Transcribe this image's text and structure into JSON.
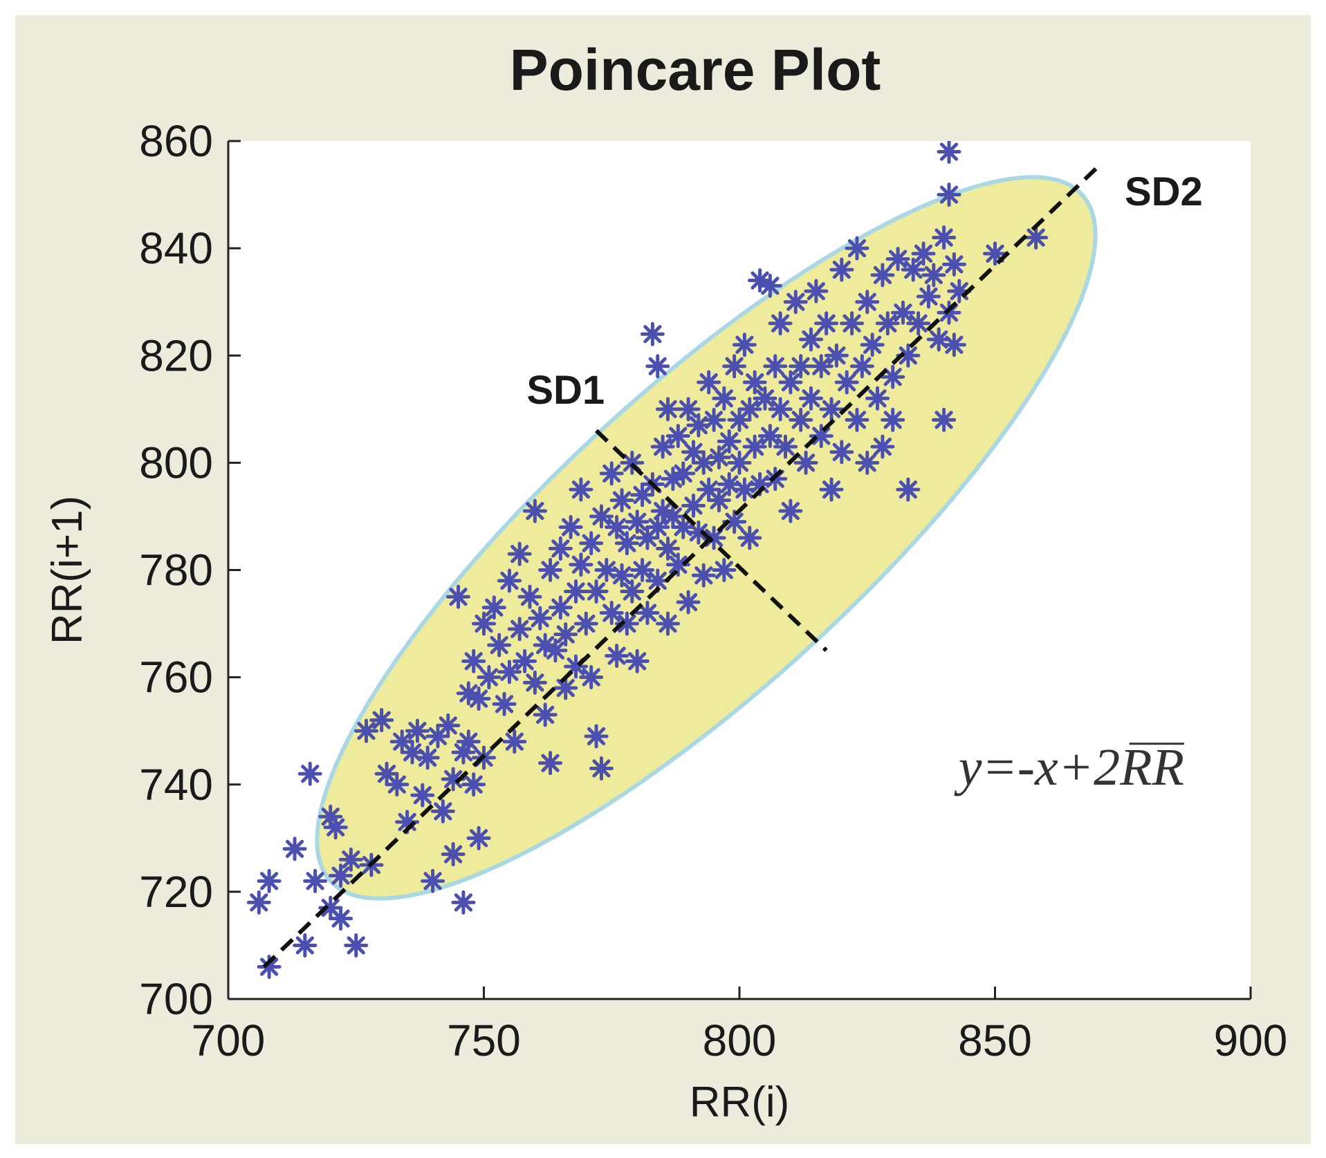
{
  "chart_data": {
    "type": "scatter",
    "title": "Poincare Plot",
    "xlabel": "RR(i)",
    "ylabel": "RR(i+1)",
    "xlim": [
      700,
      900
    ],
    "ylim": [
      700,
      860
    ],
    "xticks": [
      700,
      750,
      800,
      850,
      900
    ],
    "yticks": [
      700,
      720,
      740,
      760,
      780,
      800,
      820,
      840,
      860
    ],
    "grid": false,
    "marker": "asterisk",
    "colors": {
      "page_background": "#ecebdc",
      "plot_background": "#ffffff",
      "points": "#4a4fb0",
      "ellipse_fill": "#eeec9c",
      "ellipse_stroke": "#a9d8e4",
      "lines": "#111111"
    },
    "annotations": [
      {
        "text": "SD1",
        "x": 766,
        "y": 811
      },
      {
        "text": "SD2",
        "x": 883,
        "y": 848
      },
      {
        "text": "y=-x+2RR",
        "x": 887,
        "y": 740,
        "overline": "RR"
      }
    ],
    "ellipse": {
      "center": [
        793,
        785
      ],
      "sd2_endpoints": [
        [
          720,
          722
        ],
        [
          867,
          850
        ]
      ],
      "semi_minor": 28
    },
    "lines": [
      {
        "name": "SD2",
        "style": "dashed",
        "from": [
          707,
          706
        ],
        "to": [
          871,
          856
        ]
      },
      {
        "name": "SD1",
        "style": "dashed",
        "from": [
          772,
          806
        ],
        "to": [
          817,
          765
        ]
      }
    ],
    "points": [
      [
        706,
        718
      ],
      [
        708,
        722
      ],
      [
        708,
        706
      ],
      [
        713,
        728
      ],
      [
        715,
        710
      ],
      [
        716,
        742
      ],
      [
        717,
        722
      ],
      [
        720,
        734
      ],
      [
        720,
        717
      ],
      [
        721,
        732
      ],
      [
        722,
        715
      ],
      [
        722,
        723
      ],
      [
        725,
        710
      ],
      [
        724,
        726
      ],
      [
        727,
        750
      ],
      [
        728,
        725
      ],
      [
        730,
        752
      ],
      [
        731,
        742
      ],
      [
        733,
        740
      ],
      [
        734,
        748
      ],
      [
        735,
        733
      ],
      [
        736,
        746
      ],
      [
        737,
        750
      ],
      [
        738,
        738
      ],
      [
        739,
        745
      ],
      [
        740,
        722
      ],
      [
        741,
        749
      ],
      [
        742,
        735
      ],
      [
        743,
        751
      ],
      [
        744,
        727
      ],
      [
        744,
        741
      ],
      [
        745,
        775
      ],
      [
        746,
        718
      ],
      [
        746,
        746
      ],
      [
        747,
        757
      ],
      [
        747,
        748
      ],
      [
        748,
        763
      ],
      [
        748,
        740
      ],
      [
        749,
        730
      ],
      [
        749,
        756
      ],
      [
        750,
        770
      ],
      [
        750,
        745
      ],
      [
        751,
        760
      ],
      [
        752,
        773
      ],
      [
        753,
        766
      ],
      [
        754,
        755
      ],
      [
        755,
        761
      ],
      [
        755,
        778
      ],
      [
        756,
        748
      ],
      [
        757,
        769
      ],
      [
        757,
        783
      ],
      [
        758,
        763
      ],
      [
        759,
        775
      ],
      [
        760,
        791
      ],
      [
        760,
        759
      ],
      [
        761,
        771
      ],
      [
        762,
        753
      ],
      [
        762,
        766
      ],
      [
        763,
        780
      ],
      [
        763,
        744
      ],
      [
        764,
        765
      ],
      [
        765,
        773
      ],
      [
        765,
        784
      ],
      [
        766,
        758
      ],
      [
        766,
        768
      ],
      [
        767,
        788
      ],
      [
        768,
        776
      ],
      [
        768,
        762
      ],
      [
        769,
        781
      ],
      [
        769,
        795
      ],
      [
        770,
        770
      ],
      [
        771,
        785
      ],
      [
        771,
        760
      ],
      [
        772,
        776
      ],
      [
        772,
        749
      ],
      [
        773,
        790
      ],
      [
        773,
        743
      ],
      [
        774,
        780
      ],
      [
        775,
        772
      ],
      [
        775,
        798
      ],
      [
        776,
        788
      ],
      [
        776,
        764
      ],
      [
        777,
        779
      ],
      [
        777,
        793
      ],
      [
        778,
        785
      ],
      [
        778,
        770
      ],
      [
        779,
        800
      ],
      [
        779,
        776
      ],
      [
        780,
        789
      ],
      [
        780,
        763
      ],
      [
        781,
        794
      ],
      [
        781,
        780
      ],
      [
        782,
        786
      ],
      [
        782,
        772
      ],
      [
        783,
        824
      ],
      [
        783,
        796
      ],
      [
        784,
        788
      ],
      [
        784,
        818
      ],
      [
        784,
        778
      ],
      [
        785,
        803
      ],
      [
        785,
        791
      ],
      [
        786,
        784
      ],
      [
        786,
        810
      ],
      [
        786,
        770
      ],
      [
        787,
        797
      ],
      [
        787,
        790
      ],
      [
        788,
        805
      ],
      [
        788,
        781
      ],
      [
        789,
        798
      ],
      [
        789,
        788
      ],
      [
        790,
        810
      ],
      [
        790,
        774
      ],
      [
        791,
        802
      ],
      [
        791,
        792
      ],
      [
        792,
        787
      ],
      [
        792,
        807
      ],
      [
        793,
        800
      ],
      [
        793,
        779
      ],
      [
        794,
        815
      ],
      [
        794,
        795
      ],
      [
        795,
        808
      ],
      [
        795,
        786
      ],
      [
        796,
        801
      ],
      [
        796,
        793
      ],
      [
        797,
        812
      ],
      [
        797,
        780
      ],
      [
        798,
        804
      ],
      [
        798,
        796
      ],
      [
        799,
        818
      ],
      [
        799,
        789
      ],
      [
        800,
        808
      ],
      [
        800,
        800
      ],
      [
        801,
        795
      ],
      [
        801,
        822
      ],
      [
        802,
        810
      ],
      [
        802,
        786
      ],
      [
        803,
        803
      ],
      [
        803,
        815
      ],
      [
        804,
        834
      ],
      [
        804,
        796
      ],
      [
        805,
        812
      ],
      [
        806,
        805
      ],
      [
        806,
        833
      ],
      [
        807,
        818
      ],
      [
        807,
        797
      ],
      [
        808,
        810
      ],
      [
        808,
        826
      ],
      [
        809,
        803
      ],
      [
        810,
        815
      ],
      [
        810,
        791
      ],
      [
        811,
        830
      ],
      [
        812,
        808
      ],
      [
        812,
        818
      ],
      [
        813,
        800
      ],
      [
        814,
        823
      ],
      [
        814,
        812
      ],
      [
        815,
        832
      ],
      [
        816,
        805
      ],
      [
        816,
        818
      ],
      [
        817,
        826
      ],
      [
        818,
        810
      ],
      [
        818,
        795
      ],
      [
        819,
        820
      ],
      [
        820,
        836
      ],
      [
        820,
        802
      ],
      [
        821,
        815
      ],
      [
        822,
        826
      ],
      [
        823,
        808
      ],
      [
        823,
        840
      ],
      [
        824,
        818
      ],
      [
        825,
        830
      ],
      [
        825,
        800
      ],
      [
        826,
        822
      ],
      [
        827,
        812
      ],
      [
        828,
        835
      ],
      [
        828,
        803
      ],
      [
        829,
        826
      ],
      [
        830,
        816
      ],
      [
        830,
        808
      ],
      [
        831,
        838
      ],
      [
        832,
        828
      ],
      [
        833,
        820
      ],
      [
        833,
        795
      ],
      [
        834,
        836
      ],
      [
        835,
        826
      ],
      [
        836,
        839
      ],
      [
        837,
        831
      ],
      [
        838,
        835
      ],
      [
        839,
        823
      ],
      [
        840,
        842
      ],
      [
        840,
        808
      ],
      [
        841,
        828
      ],
      [
        841,
        850
      ],
      [
        841,
        858
      ],
      [
        842,
        837
      ],
      [
        842,
        822
      ],
      [
        843,
        832
      ],
      [
        850,
        839
      ],
      [
        858,
        842
      ]
    ]
  }
}
